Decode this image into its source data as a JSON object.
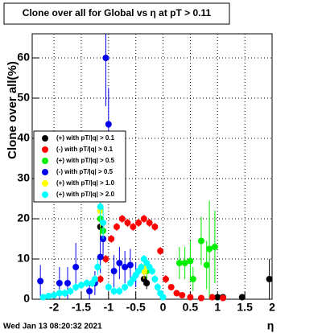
{
  "chart_data": {
    "type": "scatter",
    "title": "Clone  over all for Global vs  η at pT > 0.11",
    "x_label": "η",
    "y_label": "Clone  over all(%)",
    "timestamp": "Wed Jan 13 08:20:32 2021",
    "xlim": [
      -2.4,
      2.0
    ],
    "ylim": [
      0,
      66
    ],
    "xticks": [
      -2,
      -1.5,
      -1,
      -0.5,
      0,
      0.5,
      1,
      1.5,
      2
    ],
    "yticks": [
      0,
      10,
      20,
      30,
      40,
      50,
      60
    ],
    "grid": true,
    "legend": "left",
    "series": [
      {
        "name": "(+) with pT/|q| > 0.1",
        "color": "#000000",
        "x": [
          -1.15,
          -1.1,
          -0.35,
          -0.3,
          1.0,
          1.1,
          1.45,
          1.95
        ],
        "values": [
          18,
          15,
          5,
          4,
          0.5,
          0.5,
          0.5,
          5
        ],
        "errors": [
          3,
          3,
          1.5,
          1.5,
          0.5,
          0.5,
          0.5,
          5
        ]
      },
      {
        "name": "(-) with pT/|q| > 0.1",
        "color": "#ff0000",
        "x": [
          -1.15,
          -1.05,
          -0.95,
          -0.85,
          -0.75,
          -0.65,
          -0.55,
          -0.45,
          -0.35,
          -0.25,
          -0.15,
          -0.05,
          0.05,
          0.15,
          0.25,
          0.35,
          0.5,
          0.7,
          0.9,
          1.1
        ],
        "values": [
          5,
          10,
          15,
          18,
          20,
          19,
          18,
          19,
          20,
          19,
          18,
          12,
          5,
          3,
          1.5,
          1,
          0.5,
          0.3,
          0.5,
          0.3
        ],
        "errors": [
          1,
          1,
          1,
          1,
          1,
          1,
          1,
          1,
          1,
          1,
          1,
          1,
          1,
          0.5,
          0.5,
          0.5,
          0.3,
          0.3,
          0.3,
          0.3
        ]
      },
      {
        "name": "(+) with pT/|q| > 0.5",
        "color": "#00ee00",
        "x": [
          -1.15,
          -1.1,
          -0.3,
          0.3,
          0.4,
          0.5,
          0.55,
          0.7,
          0.8,
          0.85,
          0.95
        ],
        "values": [
          20,
          17,
          7,
          9,
          9,
          9.5,
          5,
          14.5,
          8.5,
          12.5,
          13
        ],
        "errors": [
          4,
          4,
          2,
          4,
          4,
          5,
          3,
          6,
          6,
          12,
          9
        ]
      },
      {
        "name": "(-) with pT/|q| > 0.5",
        "color": "#0000ee",
        "x": [
          -2.25,
          -1.9,
          -1.75,
          -1.6,
          -1.35,
          -1.25,
          -1.15,
          -1.1,
          -1.05,
          -1.0,
          -0.9,
          -0.8,
          -0.7,
          -0.6,
          -0.5
        ],
        "values": [
          4.5,
          4,
          4,
          8,
          2,
          4,
          10.5,
          15,
          60,
          43.5,
          7,
          9,
          8,
          8.5,
          6
        ],
        "errors": [
          4,
          4,
          4,
          6,
          2,
          3,
          4,
          5,
          12,
          9,
          4,
          4,
          4,
          4,
          3
        ]
      },
      {
        "name": "(+) with pT/|q| > 1.0",
        "color": "#ffff00",
        "x": [
          -1.15,
          -0.35,
          -0.3
        ],
        "values": [
          22,
          7,
          8
        ],
        "errors": [
          4,
          2,
          2
        ]
      },
      {
        "name": "(+) with pT/|q| > 2.0",
        "color": "#00ffff",
        "x": [
          -2.2,
          -2.1,
          -2.0,
          -1.9,
          -1.8,
          -1.7,
          -1.6,
          -1.5,
          -1.4,
          -1.3,
          -1.25,
          -1.2,
          -1.15,
          -1.1,
          -1.0,
          -0.9,
          -0.8,
          -0.7,
          -0.6,
          -0.55,
          -0.5,
          -0.45,
          -0.4,
          -0.35,
          -0.3,
          -0.25,
          -0.2,
          -0.15,
          -0.1,
          -0.05,
          0.0
        ],
        "values": [
          0.5,
          0.8,
          1,
          1.5,
          1.5,
          2,
          3,
          3.5,
          4,
          4,
          5,
          8,
          23,
          19,
          3,
          2,
          2,
          3,
          4,
          5,
          6,
          7,
          8,
          10,
          9,
          8,
          7,
          5,
          3,
          1.5,
          0.5
        ],
        "errors": [
          0.5,
          0.5,
          0.5,
          1,
          1,
          1,
          1,
          1,
          1,
          1,
          1,
          2,
          4,
          4,
          1,
          1,
          1,
          1,
          1,
          1,
          1,
          1,
          1,
          1,
          1,
          1,
          1,
          1,
          1,
          0.5,
          0.5
        ]
      }
    ]
  }
}
